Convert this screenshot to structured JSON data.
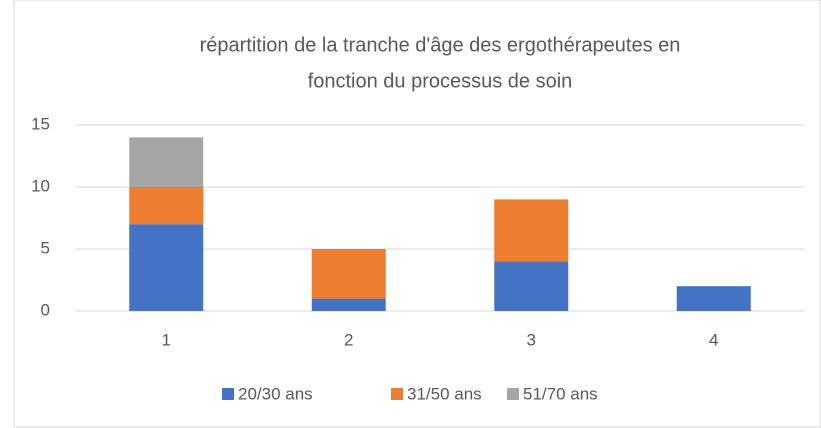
{
  "chart_data": {
    "type": "stacked_bar",
    "title": [
      "répartition de la tranche d'âge des ergothérapeutes en",
      "fonction du processus de soin"
    ],
    "categories": [
      "1",
      "2",
      "3",
      "4"
    ],
    "series": [
      {
        "name": "20/30 ans",
        "color": "#4472c4",
        "values": [
          7,
          1,
          4,
          2
        ]
      },
      {
        "name": "31/50 ans",
        "color": "#ed7d31",
        "values": [
          3,
          4,
          5,
          0
        ]
      },
      {
        "name": "51/70 ans",
        "color": "#a5a5a5",
        "values": [
          4,
          0,
          0,
          0
        ]
      }
    ],
    "ylim": [
      0,
      15
    ],
    "yticks": [
      0,
      5,
      10,
      15
    ],
    "grid": true,
    "legend": "bottom"
  }
}
